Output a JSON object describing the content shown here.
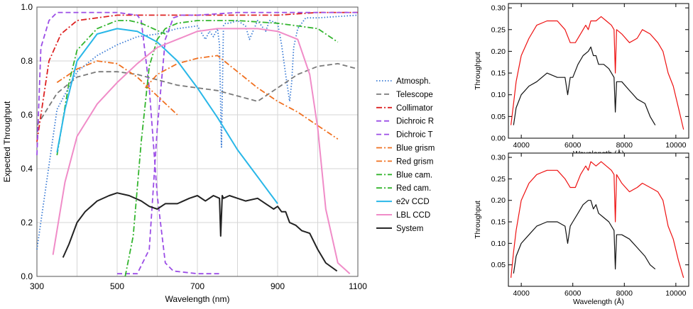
{
  "chart_data": [
    {
      "type": "line",
      "xlabel": "Wavelength (nm)",
      "ylabel": "Expected Throughput",
      "xlim": [
        300,
        1100
      ],
      "ylim": [
        0,
        1.0
      ],
      "xticks": [
        "300",
        "500",
        "700",
        "900",
        "1100"
      ],
      "yticks": [
        "0.0",
        "0.2",
        "0.4",
        "0.6",
        "0.8",
        "1.0"
      ],
      "grid": true,
      "legend_position": "right",
      "series": [
        {
          "name": "Atmosph.",
          "color": "#3a7bd5",
          "style": "dotted",
          "x": [
            300,
            350,
            400,
            450,
            500,
            550,
            600,
            650,
            700,
            720,
            730,
            740,
            750,
            755,
            760,
            765,
            770,
            780,
            800,
            820,
            830,
            850,
            870,
            880,
            900,
            910,
            920,
            930,
            935,
            940,
            950,
            970,
            1000,
            1100
          ],
          "y": [
            0.1,
            0.62,
            0.76,
            0.82,
            0.86,
            0.89,
            0.9,
            0.92,
            0.93,
            0.88,
            0.91,
            0.89,
            0.92,
            0.86,
            0.48,
            0.93,
            0.94,
            0.94,
            0.95,
            0.93,
            0.88,
            0.95,
            0.91,
            0.95,
            0.94,
            0.86,
            0.75,
            0.65,
            0.72,
            0.85,
            0.92,
            0.96,
            0.96,
            0.97
          ]
        },
        {
          "name": "Telescope",
          "color": "#7a7a7a",
          "style": "dashed",
          "x": [
            300,
            350,
            400,
            450,
            500,
            550,
            600,
            650,
            700,
            750,
            800,
            850,
            900,
            950,
            1000,
            1050,
            1100
          ],
          "y": [
            0.56,
            0.68,
            0.74,
            0.76,
            0.76,
            0.75,
            0.73,
            0.71,
            0.7,
            0.69,
            0.67,
            0.65,
            0.7,
            0.75,
            0.78,
            0.79,
            0.77
          ]
        },
        {
          "name": "Collimator",
          "color": "#dd2222",
          "style": "dashdot",
          "x": [
            300,
            330,
            360,
            400,
            450,
            500,
            600,
            700,
            800,
            900,
            1000,
            1100
          ],
          "y": [
            0.5,
            0.8,
            0.9,
            0.95,
            0.96,
            0.97,
            0.97,
            0.97,
            0.97,
            0.97,
            0.98,
            0.98
          ]
        },
        {
          "name": "Dichroic R",
          "color": "#9b4de6",
          "style": "dashed",
          "x": [
            500,
            550,
            580,
            600,
            620,
            640,
            660,
            700,
            800,
            900,
            1000,
            1100
          ],
          "y": [
            0.01,
            0.01,
            0.1,
            0.55,
            0.88,
            0.96,
            0.97,
            0.97,
            0.98,
            0.98,
            0.98,
            0.98
          ]
        },
        {
          "name": "Dichroic T",
          "color": "#9b4de6",
          "style": "dashed",
          "x": [
            300,
            310,
            330,
            350,
            400,
            450,
            500,
            550,
            560,
            580,
            600,
            620,
            640,
            700,
            760
          ],
          "y": [
            0.45,
            0.85,
            0.95,
            0.98,
            0.98,
            0.98,
            0.98,
            0.97,
            0.95,
            0.7,
            0.3,
            0.05,
            0.02,
            0.01,
            0.01
          ]
        },
        {
          "name": "Blue grism",
          "color": "#f07020",
          "style": "dashdot",
          "x": [
            350,
            400,
            450,
            500,
            550,
            600,
            650
          ],
          "y": [
            0.72,
            0.77,
            0.8,
            0.79,
            0.74,
            0.67,
            0.6
          ]
        },
        {
          "name": "Red grism",
          "color": "#f07020",
          "style": "dashdot",
          "x": [
            570,
            600,
            650,
            700,
            750,
            800,
            850,
            900,
            950,
            1000,
            1050
          ],
          "y": [
            0.7,
            0.75,
            0.79,
            0.81,
            0.82,
            0.76,
            0.7,
            0.65,
            0.61,
            0.56,
            0.51
          ]
        },
        {
          "name": "Blue cam.",
          "color": "#33b52e",
          "style": "dashdot",
          "x": [
            350,
            380,
            400,
            450,
            500,
            530,
            560,
            590,
            620
          ],
          "y": [
            0.45,
            0.72,
            0.84,
            0.92,
            0.95,
            0.95,
            0.94,
            0.92,
            0.9
          ]
        },
        {
          "name": "Red cam.",
          "color": "#33b52e",
          "style": "dashdot",
          "x": [
            520,
            540,
            560,
            580,
            600,
            620,
            650,
            700,
            800,
            900,
            1000,
            1050
          ],
          "y": [
            0.0,
            0.15,
            0.5,
            0.78,
            0.88,
            0.92,
            0.94,
            0.95,
            0.95,
            0.94,
            0.92,
            0.87
          ]
        },
        {
          "name": "e2v CCD",
          "color": "#29b7e8",
          "style": "solid",
          "x": [
            350,
            370,
            400,
            450,
            500,
            550,
            600,
            650,
            700,
            750,
            800,
            850,
            900
          ],
          "y": [
            0.46,
            0.62,
            0.8,
            0.9,
            0.92,
            0.91,
            0.87,
            0.8,
            0.7,
            0.59,
            0.47,
            0.37,
            0.27
          ]
        },
        {
          "name": "LBL CCD",
          "color": "#f08cc8",
          "style": "solid",
          "x": [
            340,
            370,
            400,
            450,
            500,
            550,
            600,
            650,
            700,
            750,
            800,
            850,
            900,
            950,
            980,
            1000,
            1020,
            1050,
            1080
          ],
          "y": [
            0.08,
            0.35,
            0.52,
            0.64,
            0.72,
            0.79,
            0.85,
            0.88,
            0.91,
            0.92,
            0.92,
            0.92,
            0.91,
            0.88,
            0.75,
            0.55,
            0.25,
            0.05,
            0.01
          ]
        },
        {
          "name": "System",
          "color": "#222222",
          "style": "solid",
          "x": [
            365,
            380,
            400,
            420,
            450,
            480,
            500,
            530,
            560,
            580,
            600,
            620,
            650,
            680,
            700,
            720,
            740,
            755,
            758,
            762,
            765,
            780,
            800,
            820,
            850,
            870,
            890,
            900,
            910,
            920,
            930,
            945,
            960,
            980,
            1000,
            1020,
            1048
          ],
          "y": [
            0.07,
            0.12,
            0.2,
            0.24,
            0.28,
            0.3,
            0.31,
            0.3,
            0.28,
            0.26,
            0.25,
            0.27,
            0.27,
            0.29,
            0.3,
            0.28,
            0.3,
            0.29,
            0.15,
            0.3,
            0.29,
            0.3,
            0.29,
            0.28,
            0.29,
            0.27,
            0.25,
            0.26,
            0.24,
            0.24,
            0.2,
            0.19,
            0.17,
            0.16,
            0.1,
            0.05,
            0.02
          ]
        }
      ]
    },
    {
      "type": "line",
      "xlabel": "Wavelength (Å)",
      "ylabel": "Throughput",
      "xlim": [
        3500,
        10500
      ],
      "ylim": [
        0.0,
        0.31
      ],
      "xticks": [
        "4000",
        "6000",
        "8000",
        "10000"
      ],
      "yticks": [
        "0.00",
        "0.05",
        "0.10",
        "0.15",
        "0.20",
        "0.25",
        "0.30"
      ],
      "series": [
        {
          "color": "#ee1111",
          "x": [
            3600,
            3700,
            3800,
            4000,
            4300,
            4600,
            5000,
            5400,
            5700,
            5900,
            6100,
            6300,
            6500,
            6600,
            6700,
            6900,
            7100,
            7300,
            7500,
            7600,
            7650,
            7700,
            7900,
            8200,
            8500,
            8700,
            9000,
            9300,
            9500,
            9700,
            9900,
            10100,
            10300
          ],
          "y": [
            0.03,
            0.08,
            0.13,
            0.19,
            0.23,
            0.26,
            0.27,
            0.27,
            0.25,
            0.22,
            0.22,
            0.24,
            0.26,
            0.25,
            0.27,
            0.27,
            0.28,
            0.27,
            0.26,
            0.25,
            0.15,
            0.25,
            0.24,
            0.22,
            0.23,
            0.25,
            0.24,
            0.22,
            0.2,
            0.15,
            0.12,
            0.07,
            0.02
          ]
        },
        {
          "color": "#111111",
          "x": [
            3700,
            3800,
            4000,
            4300,
            4600,
            5000,
            5400,
            5700,
            5800,
            5900,
            6000,
            6200,
            6400,
            6600,
            6700,
            6800,
            6900,
            7000,
            7200,
            7400,
            7600,
            7650,
            7700,
            7900,
            8200,
            8500,
            8800,
            9000,
            9200
          ],
          "y": [
            0.03,
            0.07,
            0.1,
            0.12,
            0.13,
            0.15,
            0.14,
            0.14,
            0.1,
            0.14,
            0.14,
            0.17,
            0.19,
            0.2,
            0.21,
            0.19,
            0.19,
            0.17,
            0.17,
            0.16,
            0.14,
            0.06,
            0.13,
            0.13,
            0.11,
            0.09,
            0.08,
            0.05,
            0.03
          ]
        }
      ]
    },
    {
      "type": "line",
      "xlabel": "Wavelength (Å)",
      "ylabel": "Throughput",
      "xlim": [
        3500,
        10500
      ],
      "ylim": [
        0.0,
        0.31
      ],
      "xticks": [
        "4000",
        "6000",
        "8000",
        "10000"
      ],
      "yticks": [
        "0.05",
        "0.10",
        "0.15",
        "0.20",
        "0.25",
        "0.30"
      ],
      "series": [
        {
          "color": "#ee1111",
          "x": [
            3600,
            3700,
            3800,
            4000,
            4300,
            4600,
            5000,
            5400,
            5700,
            5900,
            6100,
            6300,
            6500,
            6600,
            6700,
            6900,
            7100,
            7300,
            7500,
            7600,
            7650,
            7700,
            7900,
            8200,
            8500,
            8700,
            9000,
            9300,
            9500,
            9700,
            9900,
            10100,
            10300
          ],
          "y": [
            0.02,
            0.08,
            0.13,
            0.2,
            0.24,
            0.26,
            0.27,
            0.27,
            0.25,
            0.23,
            0.23,
            0.26,
            0.28,
            0.27,
            0.29,
            0.28,
            0.29,
            0.28,
            0.27,
            0.26,
            0.15,
            0.26,
            0.24,
            0.22,
            0.23,
            0.24,
            0.23,
            0.22,
            0.2,
            0.14,
            0.11,
            0.06,
            0.02
          ]
        },
        {
          "color": "#111111",
          "x": [
            3700,
            3800,
            4000,
            4300,
            4600,
            5000,
            5400,
            5700,
            5800,
            5900,
            6000,
            6200,
            6400,
            6600,
            6700,
            6800,
            6900,
            7000,
            7200,
            7400,
            7600,
            7650,
            7700,
            7900,
            8200,
            8500,
            8800,
            9000,
            9200
          ],
          "y": [
            0.03,
            0.07,
            0.1,
            0.12,
            0.14,
            0.15,
            0.15,
            0.14,
            0.1,
            0.14,
            0.15,
            0.17,
            0.19,
            0.2,
            0.2,
            0.18,
            0.19,
            0.17,
            0.16,
            0.15,
            0.13,
            0.04,
            0.12,
            0.12,
            0.11,
            0.09,
            0.07,
            0.05,
            0.04
          ]
        }
      ]
    }
  ]
}
